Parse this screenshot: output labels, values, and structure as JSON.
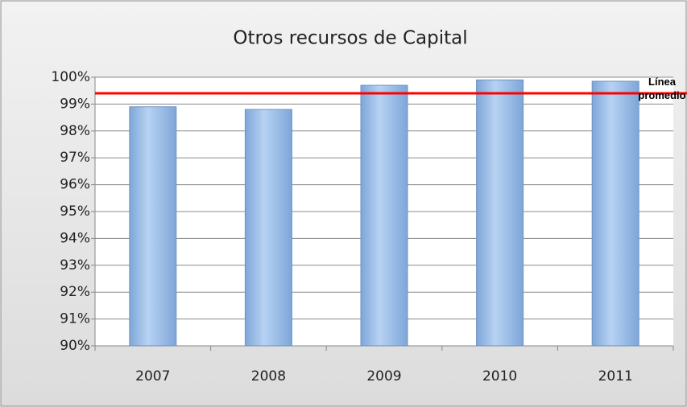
{
  "chart_data": {
    "type": "bar",
    "title": "Otros recursos de Capital",
    "categories": [
      "2007",
      "2008",
      "2009",
      "2010",
      "2011"
    ],
    "values": [
      98.9,
      98.8,
      99.7,
      99.9,
      99.85
    ],
    "color": "#9cc0ea",
    "ylim": [
      90,
      100
    ],
    "yticks": [
      {
        "value": 90,
        "label": "90%"
      },
      {
        "value": 91,
        "label": "91%"
      },
      {
        "value": 92,
        "label": "92%"
      },
      {
        "value": 93,
        "label": "93%"
      },
      {
        "value": 94,
        "label": "94%"
      },
      {
        "value": 95,
        "label": "95%"
      },
      {
        "value": 96,
        "label": "96%"
      },
      {
        "value": 97,
        "label": "97%"
      },
      {
        "value": 98,
        "label": "98%"
      },
      {
        "value": 99,
        "label": "99%"
      },
      {
        "value": 100,
        "label": "100%"
      }
    ],
    "grid": true,
    "average_line": {
      "value": 99.4,
      "label": "Línea promedio",
      "color": "#ff0000"
    }
  }
}
